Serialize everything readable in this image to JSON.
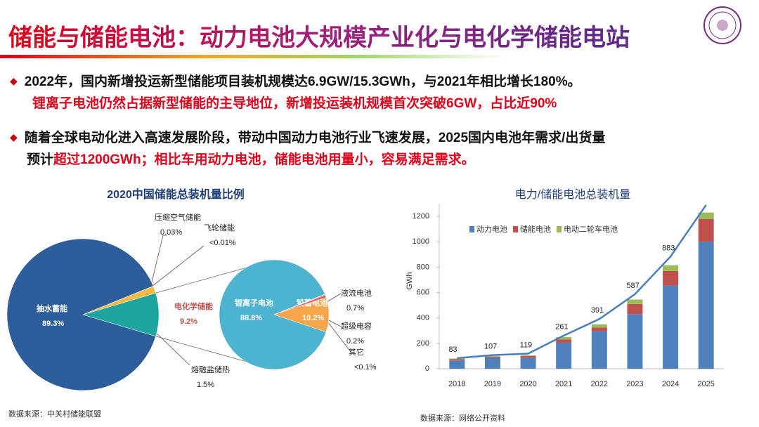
{
  "title": "储能与储能电池：动力电池大规模产业化与电化学储能电站",
  "bullets": [
    [
      "2022年，国内新增投运新型储能项目装机规模达6.9GW/15.3GWh，与2021年相比增长180%。",
      "锂离子电池仍然占据新型储能的主导地位，新增投运装机规模首次突破6GW，占比近90%"
    ],
    [
      "随着全球电动化进入高速发展阶段，带动中国动力电池行业飞速发展，2025国内电池年需求/出货量",
      "预计",
      "超过1200GWh；相比车用动力电池，储能电池用量小，容易满足需求。"
    ]
  ],
  "chart_data": [
    {
      "type": "pie",
      "title": "2020中国储能总装机量比例",
      "categories": [
        "抽水蓄能",
        "电化学储能",
        "熔融盐储热",
        "压缩空气储能",
        "飞轮储能"
      ],
      "values": [
        89.3,
        9.2,
        1.5,
        0.03,
        0.01
      ],
      "value_labels": [
        "89.3%",
        "9.2%",
        "1.5%",
        "0.03%",
        "<0.01%"
      ],
      "colors": [
        "#2e5d9c",
        "#1fa5a0",
        "#f4b942",
        "#9a9a9a",
        "#6a6a6a"
      ],
      "breakdown": {
        "categories": [
          "锂离子电池",
          "铅蓄电池",
          "液流电池",
          "超级电容",
          "其它"
        ],
        "values": [
          88.8,
          10.2,
          0.7,
          0.2,
          0.1
        ],
        "value_labels": [
          "88.8%",
          "10.2%",
          "0.7%",
          "0.2%",
          "<0.1%"
        ],
        "colors": [
          "#4db3cf",
          "#f5a54a",
          "#e05a6a",
          "#c0392b",
          "#888888"
        ]
      },
      "source": "数据来源：中关村储能联盟"
    },
    {
      "type": "bar",
      "title": "电力/储能电池总装机量",
      "stacked": true,
      "categories": [
        "2018",
        "2019",
        "2020",
        "2021",
        "2022",
        "2023",
        "2024",
        "2025"
      ],
      "series": [
        {
          "name": "动力电池",
          "color": "#4f81bd",
          "values": [
            65,
            85,
            85,
            205,
            295,
            430,
            655,
            1000
          ]
        },
        {
          "name": "储能电池",
          "color": "#c0504d",
          "values": [
            10,
            10,
            15,
            25,
            30,
            80,
            115,
            180
          ]
        },
        {
          "name": "电动二轮车电池",
          "color": "#9bbb59",
          "values": [
            5,
            5,
            5,
            20,
            25,
            35,
            45,
            50
          ]
        },
        {
          "type": "line",
          "color": "#4a7ebb",
          "values": [
            83,
            107,
            119,
            261,
            391,
            587,
            883,
            1290
          ],
          "value_labels": [
            "83",
            "107",
            "119",
            "261",
            "391",
            "587",
            "883",
            null
          ]
        }
      ],
      "ylabel": "GWh",
      "ylim": [
        0,
        1300
      ],
      "yticks": [
        0,
        200,
        400,
        600,
        800,
        1000,
        1200
      ],
      "legend": "top",
      "source": "数据来源：网络公开资料"
    }
  ]
}
